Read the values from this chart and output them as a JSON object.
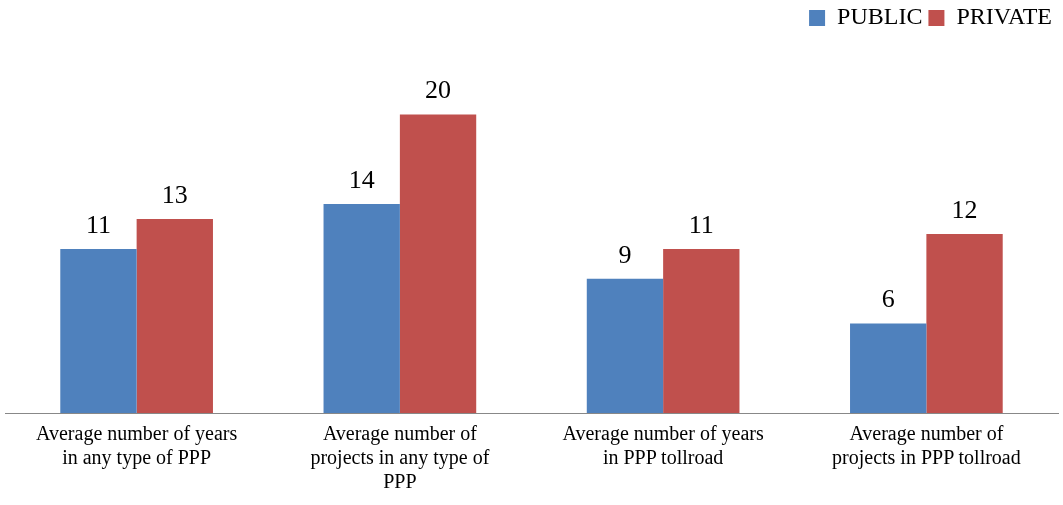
{
  "chart_data": {
    "type": "bar",
    "categories": [
      "Average number of years in any type of PPP",
      "Average number of projects in any type of PPP",
      "Average number of years in PPP tollroad",
      "Average number of projects in PPP tollroad"
    ],
    "series": [
      {
        "name": "PUBLIC",
        "color": "#4f81bd",
        "values": [
          11,
          14,
          9,
          6
        ]
      },
      {
        "name": "PRIVATE",
        "color": "#c0504d",
        "values": [
          13,
          20,
          11,
          12
        ]
      }
    ],
    "data_labels": true,
    "grid": false,
    "legend": "top right"
  }
}
